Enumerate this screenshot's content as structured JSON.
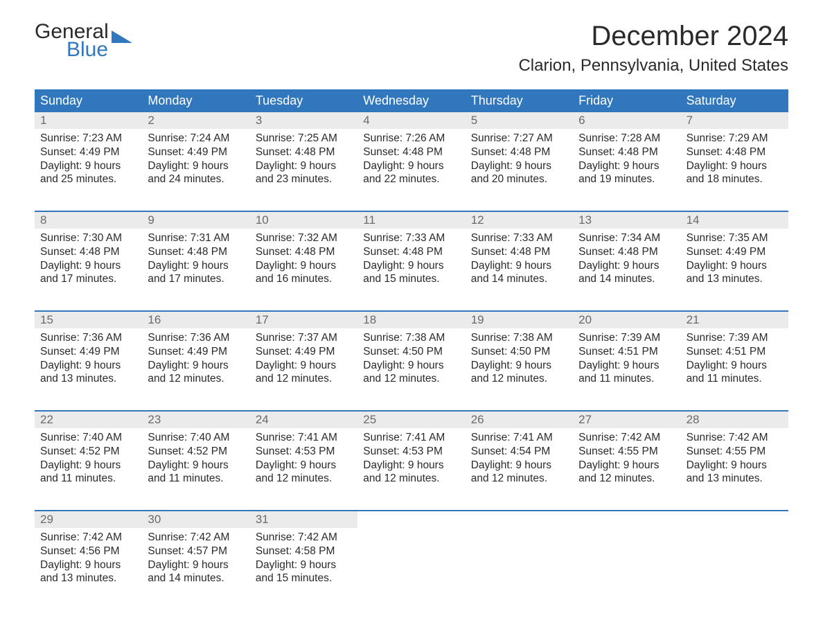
{
  "logo": {
    "word1": "General",
    "word2": "Blue"
  },
  "title": "December 2024",
  "location": "Clarion, Pennsylvania, United States",
  "colors": {
    "header_bg": "#3177bd",
    "header_text": "#ffffff",
    "daynum_bg": "#ebebeb",
    "daynum_text": "#6a6a6a",
    "body_text": "#2a2a2a",
    "week_border": "#3177bd",
    "page_bg": "#ffffff"
  },
  "fonts": {
    "title_size_pt": 40,
    "location_size_pt": 24,
    "weekday_size_pt": 18,
    "body_size_pt": 15.5,
    "family": "Arial"
  },
  "weekdays": [
    "Sunday",
    "Monday",
    "Tuesday",
    "Wednesday",
    "Thursday",
    "Friday",
    "Saturday"
  ],
  "labels": {
    "sunrise": "Sunrise",
    "sunset": "Sunset",
    "daylight": "Daylight"
  },
  "weeks": [
    [
      {
        "n": "1",
        "sunrise": "7:23 AM",
        "sunset": "4:49 PM",
        "dl1": "9 hours",
        "dl2": "and 25 minutes."
      },
      {
        "n": "2",
        "sunrise": "7:24 AM",
        "sunset": "4:49 PM",
        "dl1": "9 hours",
        "dl2": "and 24 minutes."
      },
      {
        "n": "3",
        "sunrise": "7:25 AM",
        "sunset": "4:48 PM",
        "dl1": "9 hours",
        "dl2": "and 23 minutes."
      },
      {
        "n": "4",
        "sunrise": "7:26 AM",
        "sunset": "4:48 PM",
        "dl1": "9 hours",
        "dl2": "and 22 minutes."
      },
      {
        "n": "5",
        "sunrise": "7:27 AM",
        "sunset": "4:48 PM",
        "dl1": "9 hours",
        "dl2": "and 20 minutes."
      },
      {
        "n": "6",
        "sunrise": "7:28 AM",
        "sunset": "4:48 PM",
        "dl1": "9 hours",
        "dl2": "and 19 minutes."
      },
      {
        "n": "7",
        "sunrise": "7:29 AM",
        "sunset": "4:48 PM",
        "dl1": "9 hours",
        "dl2": "and 18 minutes."
      }
    ],
    [
      {
        "n": "8",
        "sunrise": "7:30 AM",
        "sunset": "4:48 PM",
        "dl1": "9 hours",
        "dl2": "and 17 minutes."
      },
      {
        "n": "9",
        "sunrise": "7:31 AM",
        "sunset": "4:48 PM",
        "dl1": "9 hours",
        "dl2": "and 17 minutes."
      },
      {
        "n": "10",
        "sunrise": "7:32 AM",
        "sunset": "4:48 PM",
        "dl1": "9 hours",
        "dl2": "and 16 minutes."
      },
      {
        "n": "11",
        "sunrise": "7:33 AM",
        "sunset": "4:48 PM",
        "dl1": "9 hours",
        "dl2": "and 15 minutes."
      },
      {
        "n": "12",
        "sunrise": "7:33 AM",
        "sunset": "4:48 PM",
        "dl1": "9 hours",
        "dl2": "and 14 minutes."
      },
      {
        "n": "13",
        "sunrise": "7:34 AM",
        "sunset": "4:48 PM",
        "dl1": "9 hours",
        "dl2": "and 14 minutes."
      },
      {
        "n": "14",
        "sunrise": "7:35 AM",
        "sunset": "4:49 PM",
        "dl1": "9 hours",
        "dl2": "and 13 minutes."
      }
    ],
    [
      {
        "n": "15",
        "sunrise": "7:36 AM",
        "sunset": "4:49 PM",
        "dl1": "9 hours",
        "dl2": "and 13 minutes."
      },
      {
        "n": "16",
        "sunrise": "7:36 AM",
        "sunset": "4:49 PM",
        "dl1": "9 hours",
        "dl2": "and 12 minutes."
      },
      {
        "n": "17",
        "sunrise": "7:37 AM",
        "sunset": "4:49 PM",
        "dl1": "9 hours",
        "dl2": "and 12 minutes."
      },
      {
        "n": "18",
        "sunrise": "7:38 AM",
        "sunset": "4:50 PM",
        "dl1": "9 hours",
        "dl2": "and 12 minutes."
      },
      {
        "n": "19",
        "sunrise": "7:38 AM",
        "sunset": "4:50 PM",
        "dl1": "9 hours",
        "dl2": "and 12 minutes."
      },
      {
        "n": "20",
        "sunrise": "7:39 AM",
        "sunset": "4:51 PM",
        "dl1": "9 hours",
        "dl2": "and 11 minutes."
      },
      {
        "n": "21",
        "sunrise": "7:39 AM",
        "sunset": "4:51 PM",
        "dl1": "9 hours",
        "dl2": "and 11 minutes."
      }
    ],
    [
      {
        "n": "22",
        "sunrise": "7:40 AM",
        "sunset": "4:52 PM",
        "dl1": "9 hours",
        "dl2": "and 11 minutes."
      },
      {
        "n": "23",
        "sunrise": "7:40 AM",
        "sunset": "4:52 PM",
        "dl1": "9 hours",
        "dl2": "and 11 minutes."
      },
      {
        "n": "24",
        "sunrise": "7:41 AM",
        "sunset": "4:53 PM",
        "dl1": "9 hours",
        "dl2": "and 12 minutes."
      },
      {
        "n": "25",
        "sunrise": "7:41 AM",
        "sunset": "4:53 PM",
        "dl1": "9 hours",
        "dl2": "and 12 minutes."
      },
      {
        "n": "26",
        "sunrise": "7:41 AM",
        "sunset": "4:54 PM",
        "dl1": "9 hours",
        "dl2": "and 12 minutes."
      },
      {
        "n": "27",
        "sunrise": "7:42 AM",
        "sunset": "4:55 PM",
        "dl1": "9 hours",
        "dl2": "and 12 minutes."
      },
      {
        "n": "28",
        "sunrise": "7:42 AM",
        "sunset": "4:55 PM",
        "dl1": "9 hours",
        "dl2": "and 13 minutes."
      }
    ],
    [
      {
        "n": "29",
        "sunrise": "7:42 AM",
        "sunset": "4:56 PM",
        "dl1": "9 hours",
        "dl2": "and 13 minutes."
      },
      {
        "n": "30",
        "sunrise": "7:42 AM",
        "sunset": "4:57 PM",
        "dl1": "9 hours",
        "dl2": "and 14 minutes."
      },
      {
        "n": "31",
        "sunrise": "7:42 AM",
        "sunset": "4:58 PM",
        "dl1": "9 hours",
        "dl2": "and 15 minutes."
      },
      null,
      null,
      null,
      null
    ]
  ]
}
